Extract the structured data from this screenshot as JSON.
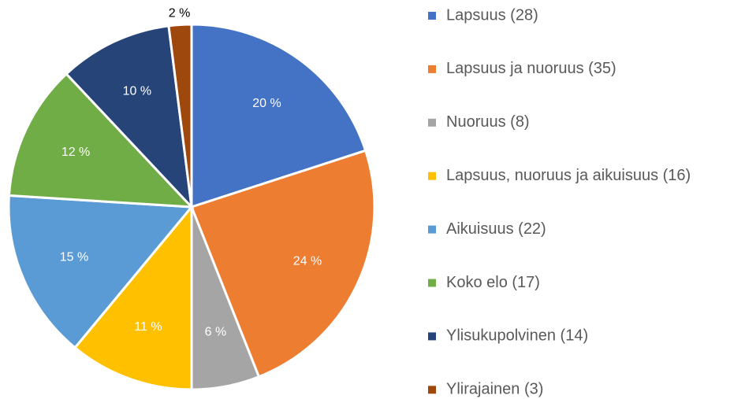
{
  "chart_data": {
    "type": "pie",
    "categories": [
      "Lapsuus (28)",
      "Lapsuus ja nuoruus (35)",
      "Nuoruus (8)",
      "Lapsuus, nuoruus ja aikuisuus (16)",
      "Aikuisuus (22)",
      "Koko elo (17)",
      "Ylisukupolvinen (14)",
      "Ylirajainen (3)"
    ],
    "values": [
      20,
      24,
      6,
      11,
      15,
      12,
      10,
      2
    ],
    "value_labels": [
      "20 %",
      "24 %",
      "6 %",
      "11 %",
      "15 %",
      "12 %",
      "10 %",
      "2 %"
    ],
    "colors": [
      "#4472c4",
      "#ed7d31",
      "#a5a5a5",
      "#ffc000",
      "#5b9bd5",
      "#70ad47",
      "#264478",
      "#9e480e"
    ],
    "legend": "right"
  }
}
